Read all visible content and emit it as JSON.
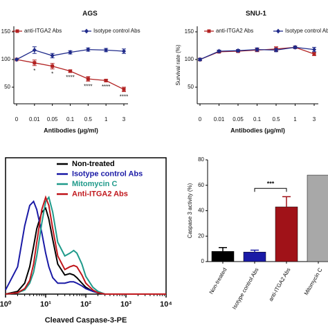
{
  "chart_data": [
    {
      "type": "line",
      "title": "AGS",
      "x_label": "Antibodies (µg/ml)",
      "categories": [
        "0",
        "0.01",
        "0.05",
        "0.1",
        "0.5",
        "1",
        "3"
      ],
      "ylim": [
        20,
        160
      ],
      "yticks": [
        50,
        100,
        150
      ],
      "series": [
        {
          "name": "anti-ITGA2 Abs",
          "color": "#b22222",
          "marker": "square",
          "values": [
            100,
            94,
            88,
            79,
            65,
            62,
            46
          ],
          "errors": [
            0,
            5,
            5,
            2,
            4,
            2,
            4
          ]
        },
        {
          "name": "Isotype control Abs",
          "color": "#1f2a8a",
          "marker": "diamond",
          "values": [
            100,
            117,
            107,
            113,
            118,
            117,
            115
          ],
          "errors": [
            0,
            6,
            4,
            3,
            3,
            3,
            4
          ]
        }
      ],
      "significance": [
        null,
        "*",
        "*",
        "****",
        "****",
        "****",
        "****"
      ]
    },
    {
      "type": "line",
      "title": "SNU-1",
      "x_label": "Antibodies (µg/ml)",
      "y_label": "Survival rate (%)",
      "categories": [
        "0",
        "0.01",
        "0.05",
        "0.1",
        "0.5",
        "1",
        "3"
      ],
      "ylim": [
        20,
        160
      ],
      "yticks": [
        50,
        100,
        150
      ],
      "series": [
        {
          "name": "anti-ITGA2 Abs",
          "color": "#b22222",
          "marker": "square",
          "values": [
            100,
            114,
            115,
            117,
            119,
            122,
            110
          ],
          "errors": [
            2,
            2,
            2,
            3,
            4,
            2,
            3
          ]
        },
        {
          "name": "Isotype control Abs",
          "color": "#1f2a8a",
          "marker": "diamond",
          "values": [
            100,
            115,
            116,
            118,
            117,
            122,
            118
          ],
          "errors": [
            2,
            2,
            2,
            3,
            3,
            2,
            4
          ]
        }
      ]
    },
    {
      "type": "histogram-curve",
      "x_label": "Cleaved Caspase-3-PE",
      "log_x": true,
      "x": [
        1,
        2,
        3,
        4,
        5,
        6,
        8,
        10,
        12,
        15,
        20,
        30,
        40,
        50,
        60,
        80,
        100,
        150,
        200,
        300,
        500,
        1000,
        10000
      ],
      "xlim": [
        1,
        10000
      ],
      "xticks": [
        {
          "value": 1,
          "label": "10⁰"
        },
        {
          "value": 10,
          "label": "10¹"
        },
        {
          "value": 100,
          "label": "10²"
        },
        {
          "value": 1000,
          "label": "10³"
        },
        {
          "value": 10000,
          "label": "10⁴"
        }
      ],
      "ylim": [
        0,
        100
      ],
      "series": [
        {
          "name": "Non-treated",
          "color": "#000000",
          "values": [
            0,
            2,
            8,
            20,
            35,
            48,
            60,
            63,
            55,
            40,
            22,
            14,
            15,
            14,
            12,
            8,
            5,
            2,
            1,
            0,
            0,
            0,
            0
          ]
        },
        {
          "name": "Isotype control Abs",
          "color": "#1a1aa6",
          "values": [
            3,
            20,
            50,
            65,
            68,
            62,
            45,
            30,
            20,
            12,
            8,
            8,
            9,
            9,
            8,
            6,
            4,
            2,
            1,
            0,
            0,
            0,
            0
          ]
        },
        {
          "name": "Mitomycin C",
          "color": "#1f9a8a",
          "values": [
            0,
            1,
            3,
            8,
            16,
            28,
            52,
            68,
            71,
            60,
            38,
            28,
            30,
            32,
            30,
            22,
            13,
            5,
            2,
            0,
            0,
            0,
            0
          ]
        },
        {
          "name": "Anti-ITGA2 Abs",
          "color": "#c0161b",
          "values": [
            0,
            1,
            4,
            10,
            22,
            38,
            62,
            71,
            65,
            48,
            28,
            18,
            20,
            21,
            20,
            14,
            8,
            3,
            1,
            0,
            0,
            0,
            0
          ]
        }
      ]
    },
    {
      "type": "bar",
      "y_label": "Caspase 3 activity (%)",
      "categories": [
        "Non-treated",
        "Isotype control Abs",
        "anti-ITGA2 Abs",
        "Mitomycin C"
      ],
      "values": [
        8,
        7.5,
        43,
        68
      ],
      "errors": [
        3,
        1.5,
        8,
        null
      ],
      "colors": [
        "#000000",
        "#1a1aa6",
        "#a01218",
        "#a8a8a8"
      ],
      "ylim": [
        0,
        80
      ],
      "yticks": [
        0,
        20,
        40,
        60,
        80
      ],
      "annotation": "***"
    }
  ]
}
